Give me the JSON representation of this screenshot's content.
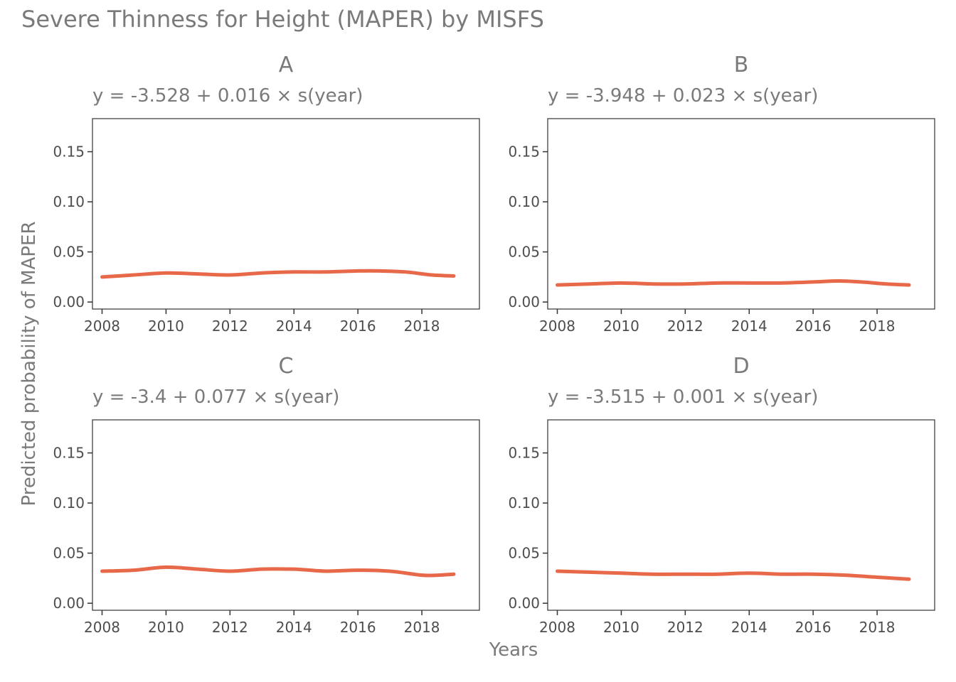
{
  "title": "Severe Thinness for Height (MAPER) by MISFS",
  "xlabel": "Years",
  "ylabel": "Predicted probability of MAPER",
  "colors": {
    "line": "#e8694a",
    "text": "#7a7a7a",
    "axis": "#333333"
  },
  "chart_data": [
    {
      "type": "line",
      "facet": "A",
      "subtitle": "y = -3.528 + 0.016 × s(year)",
      "xlim": [
        2007.7,
        2019.8
      ],
      "ylim": [
        -0.007,
        0.183
      ],
      "xticks": [
        2008,
        2010,
        2012,
        2014,
        2016,
        2018
      ],
      "xtick_labels": [
        "2008",
        "2010",
        "2012",
        "2014",
        "2016",
        "2018"
      ],
      "yticks": [
        0,
        0.05,
        0.1,
        0.15
      ],
      "ytick_labels": [
        "0.00",
        "0.05",
        "0.10",
        "0.15"
      ],
      "x": [
        2008,
        2009,
        2010,
        2011,
        2012,
        2013,
        2014,
        2015,
        2016,
        2016.7,
        2017.5,
        2018.3,
        2019
      ],
      "y": [
        0.025,
        0.027,
        0.029,
        0.028,
        0.027,
        0.029,
        0.03,
        0.03,
        0.031,
        0.031,
        0.03,
        0.027,
        0.026
      ]
    },
    {
      "type": "line",
      "facet": "B",
      "subtitle": "y = -3.948 + 0.023 × s(year)",
      "xlim": [
        2007.7,
        2019.8
      ],
      "ylim": [
        -0.007,
        0.183
      ],
      "xticks": [
        2008,
        2010,
        2012,
        2014,
        2016,
        2018
      ],
      "xtick_labels": [
        "2008",
        "2010",
        "2012",
        "2014",
        "2016",
        "2018"
      ],
      "yticks": [
        0,
        0.05,
        0.1,
        0.15
      ],
      "ytick_labels": [
        "0.00",
        "0.05",
        "0.10",
        "0.15"
      ],
      "x": [
        2008,
        2009,
        2010,
        2011,
        2012,
        2013,
        2014,
        2015,
        2016,
        2016.8,
        2017.5,
        2018.3,
        2019
      ],
      "y": [
        0.017,
        0.018,
        0.019,
        0.018,
        0.018,
        0.019,
        0.019,
        0.019,
        0.02,
        0.021,
        0.02,
        0.018,
        0.017
      ]
    },
    {
      "type": "line",
      "facet": "C",
      "subtitle": "y = -3.4 + 0.077 × s(year)",
      "xlim": [
        2007.7,
        2019.8
      ],
      "ylim": [
        -0.007,
        0.183
      ],
      "xticks": [
        2008,
        2010,
        2012,
        2014,
        2016,
        2018
      ],
      "xtick_labels": [
        "2008",
        "2010",
        "2012",
        "2014",
        "2016",
        "2018"
      ],
      "yticks": [
        0,
        0.05,
        0.1,
        0.15
      ],
      "ytick_labels": [
        "0.00",
        "0.05",
        "0.10",
        "0.15"
      ],
      "x": [
        2008,
        2009,
        2010,
        2011,
        2012,
        2013,
        2014,
        2015,
        2016,
        2017,
        2018,
        2018.5,
        2019
      ],
      "y": [
        0.032,
        0.033,
        0.036,
        0.034,
        0.032,
        0.034,
        0.034,
        0.032,
        0.033,
        0.032,
        0.028,
        0.028,
        0.029
      ]
    },
    {
      "type": "line",
      "facet": "D",
      "subtitle": "y = -3.515 + 0.001 × s(year)",
      "xlim": [
        2007.7,
        2019.8
      ],
      "ylim": [
        -0.007,
        0.183
      ],
      "xticks": [
        2008,
        2010,
        2012,
        2014,
        2016,
        2018
      ],
      "xtick_labels": [
        "2008",
        "2010",
        "2012",
        "2014",
        "2016",
        "2018"
      ],
      "yticks": [
        0,
        0.05,
        0.1,
        0.15
      ],
      "ytick_labels": [
        "0.00",
        "0.05",
        "0.10",
        "0.15"
      ],
      "x": [
        2008,
        2009,
        2010,
        2011,
        2012,
        2013,
        2014,
        2015,
        2016,
        2017,
        2018,
        2019
      ],
      "y": [
        0.032,
        0.031,
        0.03,
        0.029,
        0.029,
        0.029,
        0.03,
        0.029,
        0.029,
        0.028,
        0.026,
        0.024
      ]
    }
  ]
}
